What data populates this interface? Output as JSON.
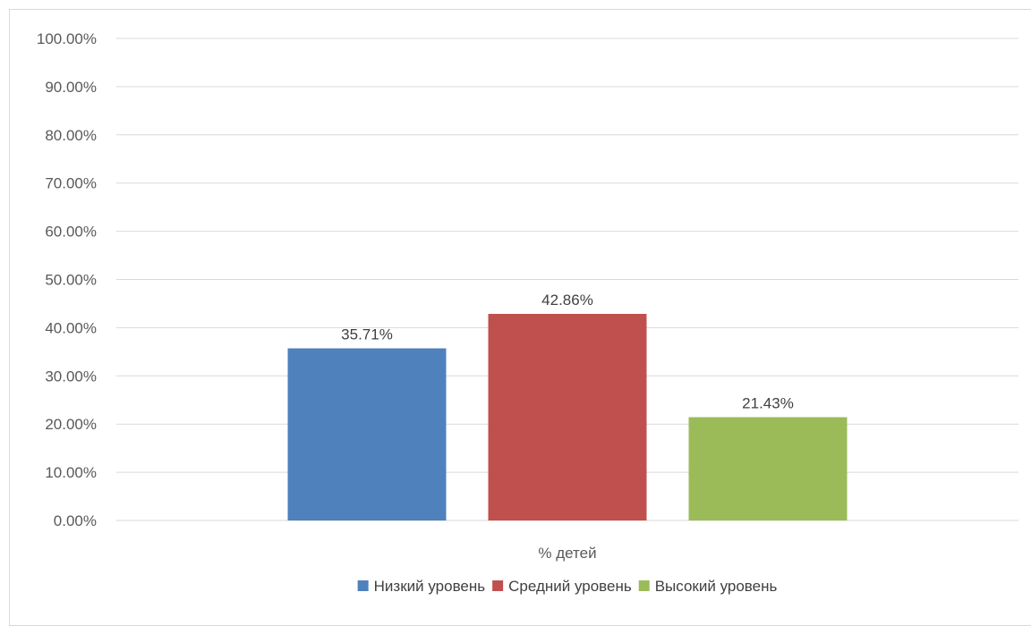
{
  "chart_data": {
    "type": "bar",
    "categories": [
      "% детей"
    ],
    "series": [
      {
        "name": "Низкий уровень",
        "values": [
          35.71
        ],
        "label": "35.71%",
        "color": "#4f81bd"
      },
      {
        "name": "Средний уровень",
        "values": [
          42.86
        ],
        "label": "42.86%",
        "color": "#c0504d"
      },
      {
        "name": "Высокий уровень",
        "values": [
          21.43
        ],
        "label": "21.43%",
        "color": "#9bbb59"
      }
    ],
    "ylim": [
      0,
      100
    ],
    "yticks": [
      0,
      10,
      20,
      30,
      40,
      50,
      60,
      70,
      80,
      90,
      100
    ],
    "ytick_labels": [
      "0.00%",
      "10.00%",
      "20.00%",
      "30.00%",
      "40.00%",
      "50.00%",
      "60.00%",
      "70.00%",
      "80.00%",
      "90.00%",
      "100.00%"
    ],
    "grid": true,
    "legend_position": "bottom",
    "gridline_color": "#d9d9d9"
  }
}
